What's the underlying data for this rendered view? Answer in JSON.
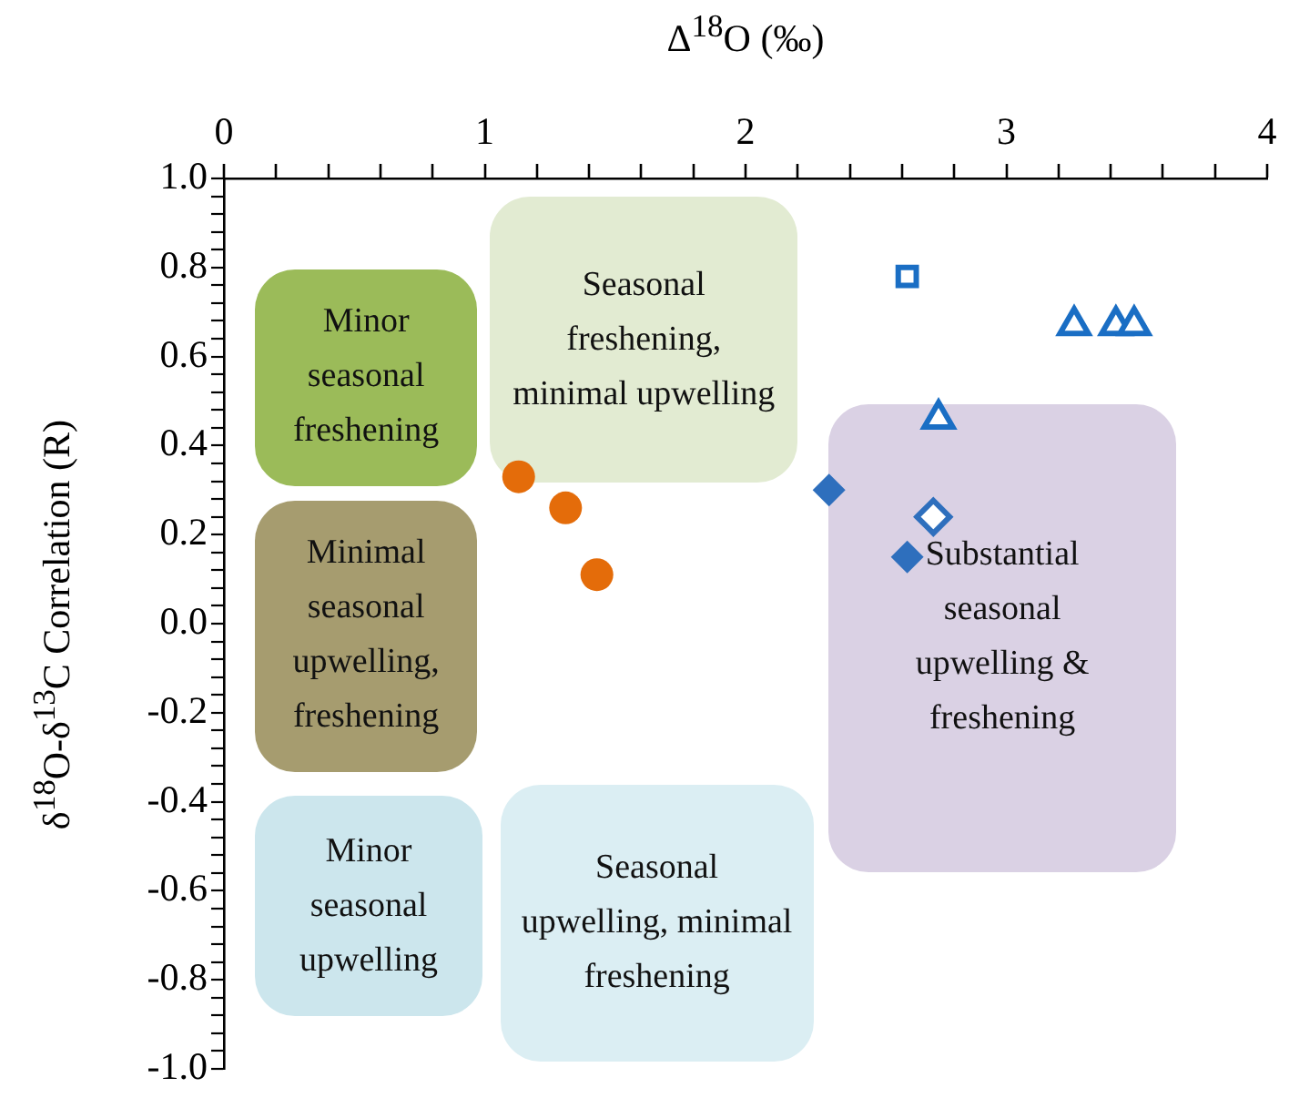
{
  "chart_data": {
    "type": "scatter",
    "xlabel": "Δ$^{18}$O (‰)",
    "ylabel": "δ$^{18}$O-δ$^{13}$C Correlation (R)",
    "xlim": [
      0,
      4
    ],
    "xticks": [
      0,
      {
        "value": 0.2,
        "label": null
      },
      {
        "value": 0.4,
        "label": null
      },
      {
        "value": 0.6,
        "label": null
      },
      {
        "value": 0.8,
        "label": null
      },
      1,
      {
        "value": 1.2,
        "label": null
      },
      {
        "value": 1.4,
        "label": null
      },
      {
        "value": 1.6,
        "label": null
      },
      {
        "value": 1.8,
        "label": null
      },
      2,
      {
        "value": 2.2,
        "label": null
      },
      {
        "value": 2.4,
        "label": null
      },
      {
        "value": 2.6,
        "label": null
      },
      {
        "value": 2.8,
        "label": null
      },
      3,
      {
        "value": 3.2,
        "label": null
      },
      {
        "value": 3.4,
        "label": null
      },
      {
        "value": 3.6,
        "label": null
      },
      {
        "value": 3.8,
        "label": null
      },
      4
    ],
    "ylim": [
      -1,
      1
    ],
    "yticks": [
      {
        "value": -1,
        "label": "-1.0"
      },
      {
        "value": -0.8,
        "label": "-0.8"
      },
      {
        "value": -0.6,
        "label": "-0.6"
      },
      {
        "value": -0.4,
        "label": "-0.4"
      },
      {
        "value": -0.2,
        "label": "-0.2"
      },
      {
        "value": 0,
        "label": "0.0"
      },
      {
        "value": 0.2,
        "label": "0.2"
      },
      {
        "value": 0.4,
        "label": "0.4"
      },
      {
        "value": 0.6,
        "label": "0.6"
      },
      {
        "value": 0.8,
        "label": "0.8"
      },
      {
        "value": 1,
        "label": "1.0"
      },
      {
        "value": -0.96,
        "label": null
      },
      {
        "value": -0.92,
        "label": null
      },
      {
        "value": -0.88,
        "label": null
      },
      {
        "value": -0.84,
        "label": null
      },
      {
        "value": -0.76,
        "label": null
      },
      {
        "value": -0.72,
        "label": null
      },
      {
        "value": -0.68,
        "label": null
      },
      {
        "value": -0.64,
        "label": null
      },
      {
        "value": -0.56,
        "label": null
      },
      {
        "value": -0.52,
        "label": null
      },
      {
        "value": -0.48,
        "label": null
      },
      {
        "value": -0.44,
        "label": null
      },
      {
        "value": -0.36,
        "label": null
      },
      {
        "value": -0.32,
        "label": null
      },
      {
        "value": -0.28,
        "label": null
      },
      {
        "value": -0.24,
        "label": null
      },
      {
        "value": -0.16,
        "label": null
      },
      {
        "value": -0.12,
        "label": null
      },
      {
        "value": -0.08,
        "label": null
      },
      {
        "value": -0.04,
        "label": null
      },
      {
        "value": 0.04,
        "label": null
      },
      {
        "value": 0.08,
        "label": null
      },
      {
        "value": 0.12,
        "label": null
      },
      {
        "value": 0.16,
        "label": null
      },
      {
        "value": 0.24,
        "label": null
      },
      {
        "value": 0.28,
        "label": null
      },
      {
        "value": 0.32,
        "label": null
      },
      {
        "value": 0.36,
        "label": null
      },
      {
        "value": 0.44,
        "label": null
      },
      {
        "value": 0.48,
        "label": null
      },
      {
        "value": 0.52,
        "label": null
      },
      {
        "value": 0.56,
        "label": null
      },
      {
        "value": 0.64,
        "label": null
      },
      {
        "value": 0.68,
        "label": null
      },
      {
        "value": 0.72,
        "label": null
      },
      {
        "value": 0.76,
        "label": null
      },
      {
        "value": 0.84,
        "label": null
      },
      {
        "value": 0.88,
        "label": null
      },
      {
        "value": 0.92,
        "label": null
      },
      {
        "value": 0.96,
        "label": null
      }
    ],
    "grid": false,
    "legend": false,
    "series": [
      {
        "color": "#e46c0a",
        "marker": "circle",
        "x": [
          1.13,
          1.31,
          1.43
        ],
        "values": [
          0.33,
          0.26,
          0.11
        ]
      },
      {
        "color": "#2e6fbd",
        "marker": "diamond",
        "x": [
          2.32,
          2.62
        ],
        "values": [
          0.3,
          0.15
        ]
      },
      {
        "color": "#2e6fbd",
        "marker": "diamond",
        "x": [
          2.72
        ],
        "values": [
          0.24
        ]
      },
      {
        "color": "#1a6ec4",
        "marker": "square",
        "x": [
          2.62
        ],
        "values": [
          0.78
        ]
      },
      {
        "color": "#1a6ec4",
        "marker": "triangle",
        "x": [
          2.74,
          3.26,
          3.42,
          3.49
        ],
        "values": [
          0.46,
          0.67,
          0.67,
          0.67
        ]
      }
    ],
    "annotations": [
      "Minor seasonal freshening",
      "Seasonal freshening, minimal upwelling",
      "Minimal seasonal upwelling, freshening",
      "Minor seasonal upwelling",
      "Seasonal upwelling, minimal freshening",
      "Substantial seasonal upwelling & freshening"
    ]
  }
}
